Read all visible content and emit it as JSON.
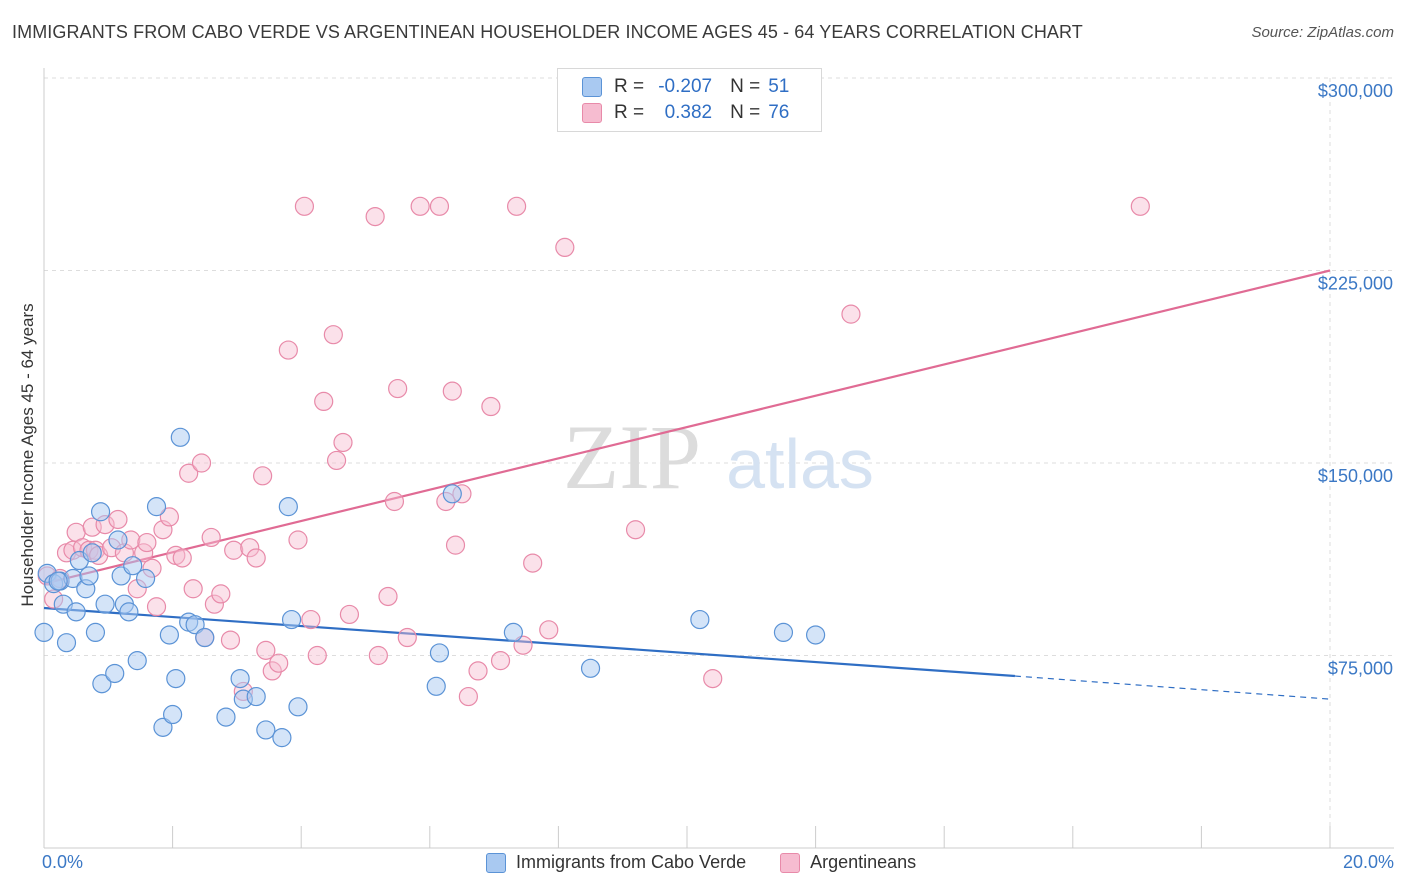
{
  "title": "IMMIGRANTS FROM CABO VERDE VS ARGENTINEAN HOUSEHOLDER INCOME AGES 45 - 64 YEARS CORRELATION CHART",
  "source": "Source: ZipAtlas.com",
  "watermark": {
    "zip": "ZIP",
    "atlas": "atlas"
  },
  "legend_top": {
    "r_label": "R =",
    "n_label": "N =",
    "rows": [
      {
        "r": "-0.207",
        "n": "51"
      },
      {
        "r": "0.382",
        "n": "76"
      }
    ]
  },
  "legend_bottom": [
    "Immigrants from Cabo Verde",
    "Argentineans"
  ],
  "colors": {
    "blue_fill": "#a9c9f1",
    "blue_stroke": "#5b93d6",
    "blue_line": "#2f6ec4",
    "pink_fill": "#f6bcd0",
    "pink_stroke": "#e88aa9",
    "pink_line": "#e06b94",
    "tick_text": "#3b78c5",
    "grid": "#dddddd"
  },
  "chart_data": {
    "type": "scatter",
    "title": "IMMIGRANTS FROM CABO VERDE VS ARGENTINEAN HOUSEHOLDER INCOME AGES 45 - 64 YEARS CORRELATION CHART",
    "xlabel": "",
    "ylabel": "Householder Income Ages 45 - 64 years",
    "xlim": [
      0,
      20
    ],
    "ylim": [
      0,
      310000
    ],
    "x_tick_labels": {
      "left": "0.0%",
      "right": "20.0%"
    },
    "yticks": [
      {
        "value": 75000,
        "label": "$75,000"
      },
      {
        "value": 150000,
        "label": "$150,000"
      },
      {
        "value": 225000,
        "label": "$225,000"
      },
      {
        "value": 300000,
        "label": "$300,000"
      }
    ],
    "series": [
      {
        "name": "Immigrants from Cabo Verde",
        "color": "blue",
        "R": -0.207,
        "N": 51,
        "trend": {
          "x0": 0,
          "y0": 93500,
          "x1": 15.1,
          "y1": 67000,
          "dash_to_x": 20,
          "dash_to_y": 58000
        },
        "points": [
          [
            0.05,
            107000
          ],
          [
            0.15,
            103000
          ],
          [
            0.25,
            104000
          ],
          [
            0.3,
            95000
          ],
          [
            0.35,
            80000
          ],
          [
            0.45,
            105000
          ],
          [
            0.5,
            92000
          ],
          [
            0.55,
            112000
          ],
          [
            0.65,
            101000
          ],
          [
            0.7,
            106000
          ],
          [
            0.75,
            115000
          ],
          [
            0.8,
            84000
          ],
          [
            0.88,
            131000
          ],
          [
            0.9,
            64000
          ],
          [
            0.95,
            95000
          ],
          [
            1.1,
            68000
          ],
          [
            1.15,
            120000
          ],
          [
            1.2,
            106000
          ],
          [
            1.25,
            95000
          ],
          [
            1.32,
            92000
          ],
          [
            1.38,
            110000
          ],
          [
            1.45,
            73000
          ],
          [
            1.58,
            105000
          ],
          [
            1.75,
            133000
          ],
          [
            1.85,
            47000
          ],
          [
            1.95,
            83000
          ],
          [
            2.0,
            52000
          ],
          [
            2.05,
            66000
          ],
          [
            2.12,
            160000
          ],
          [
            2.25,
            88000
          ],
          [
            2.35,
            87000
          ],
          [
            2.5,
            82000
          ],
          [
            2.83,
            51000
          ],
          [
            3.05,
            66000
          ],
          [
            3.1,
            58000
          ],
          [
            3.3,
            59000
          ],
          [
            3.45,
            46000
          ],
          [
            3.7,
            43000
          ],
          [
            3.8,
            133000
          ],
          [
            3.95,
            55000
          ],
          [
            3.85,
            89000
          ],
          [
            6.15,
            76000
          ],
          [
            6.1,
            63000
          ],
          [
            6.35,
            138000
          ],
          [
            7.3,
            84000
          ],
          [
            8.5,
            70000
          ],
          [
            10.2,
            89000
          ],
          [
            11.5,
            84000
          ],
          [
            12.0,
            83000
          ],
          [
            0.0,
            84000
          ],
          [
            0.22,
            104000
          ]
        ]
      },
      {
        "name": "Argentineans",
        "color": "pink",
        "R": 0.382,
        "N": 76,
        "trend": {
          "x0": 0,
          "y0": 103000,
          "x1": 20,
          "y1": 225000
        },
        "points": [
          [
            0.05,
            106000
          ],
          [
            0.15,
            97000
          ],
          [
            0.25,
            105000
          ],
          [
            0.35,
            115000
          ],
          [
            0.45,
            116000
          ],
          [
            0.5,
            123000
          ],
          [
            0.6,
            117000
          ],
          [
            0.7,
            116000
          ],
          [
            0.75,
            125000
          ],
          [
            0.8,
            116000
          ],
          [
            0.85,
            114000
          ],
          [
            0.95,
            126000
          ],
          [
            1.05,
            117000
          ],
          [
            1.15,
            128000
          ],
          [
            1.25,
            115000
          ],
          [
            1.35,
            120000
          ],
          [
            1.45,
            101000
          ],
          [
            1.55,
            115000
          ],
          [
            1.6,
            119000
          ],
          [
            1.68,
            109000
          ],
          [
            1.75,
            94000
          ],
          [
            1.85,
            124000
          ],
          [
            1.95,
            129000
          ],
          [
            2.05,
            114000
          ],
          [
            2.15,
            113000
          ],
          [
            2.25,
            146000
          ],
          [
            2.32,
            101000
          ],
          [
            2.45,
            150000
          ],
          [
            2.5,
            82000
          ],
          [
            2.6,
            121000
          ],
          [
            2.65,
            95000
          ],
          [
            2.75,
            99000
          ],
          [
            2.9,
            81000
          ],
          [
            2.95,
            116000
          ],
          [
            3.1,
            61000
          ],
          [
            3.2,
            117000
          ],
          [
            3.3,
            113000
          ],
          [
            3.4,
            145000
          ],
          [
            3.45,
            77000
          ],
          [
            3.55,
            69000
          ],
          [
            3.65,
            72000
          ],
          [
            3.8,
            194000
          ],
          [
            3.95,
            120000
          ],
          [
            4.05,
            250000
          ],
          [
            4.15,
            89000
          ],
          [
            4.25,
            75000
          ],
          [
            4.35,
            174000
          ],
          [
            4.5,
            200000
          ],
          [
            4.55,
            151000
          ],
          [
            4.65,
            158000
          ],
          [
            4.75,
            91000
          ],
          [
            5.15,
            246000
          ],
          [
            5.2,
            75000
          ],
          [
            5.35,
            98000
          ],
          [
            5.45,
            135000
          ],
          [
            5.5,
            179000
          ],
          [
            5.65,
            82000
          ],
          [
            5.85,
            250000
          ],
          [
            6.15,
            250000
          ],
          [
            6.25,
            135000
          ],
          [
            6.35,
            178000
          ],
          [
            6.4,
            118000
          ],
          [
            6.5,
            138000
          ],
          [
            6.6,
            59000
          ],
          [
            6.75,
            69000
          ],
          [
            6.95,
            172000
          ],
          [
            7.1,
            73000
          ],
          [
            7.35,
            250000
          ],
          [
            7.45,
            79000
          ],
          [
            7.6,
            111000
          ],
          [
            7.85,
            85000
          ],
          [
            8.1,
            234000
          ],
          [
            9.2,
            124000
          ],
          [
            10.4,
            66000
          ],
          [
            12.55,
            208000
          ],
          [
            17.05,
            250000
          ]
        ]
      }
    ]
  }
}
